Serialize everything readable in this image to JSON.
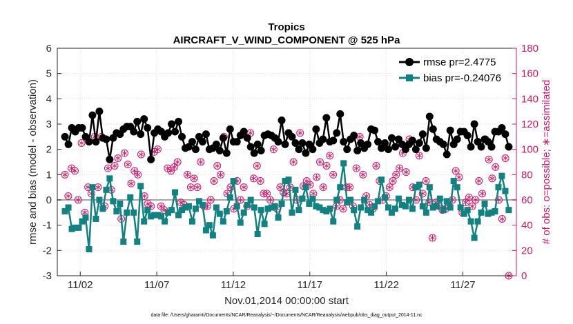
{
  "chart_data": {
    "type": "line",
    "title": "Tropics",
    "subtitle": "AIRCRAFT_V_WIND_COMPONENT @ 525 hPa",
    "xlabel": "Nov.01,2014 00:00:00 start",
    "ylabel": "rmse and bias (model - observation)",
    "ylabel_right": "# of obs: o=possible; ∗=assimilated",
    "footnote": "data file: /Users/gharamti/Documents/NCAR/Reanalysis/~/Documents/NCAR/Reanalysis/webpub/obs_diag_output_2014-11.nc",
    "x_range": [
      0.5,
      30.5
    ],
    "ylim": [
      -3,
      6
    ],
    "ylim_right": [
      0,
      180
    ],
    "x_ticks": [
      2,
      7,
      12,
      17,
      22,
      27
    ],
    "x_tick_labels": [
      "11/02",
      "11/07",
      "11/12",
      "11/17",
      "11/22",
      "11/27"
    ],
    "y_ticks": [
      "-3",
      "-2",
      "-1",
      "0",
      "1",
      "2",
      "3",
      "4",
      "5",
      "6"
    ],
    "y_ticks_right": [
      "0",
      "20",
      "40",
      "60",
      "80",
      "100",
      "120",
      "140",
      "160",
      "180"
    ],
    "colors": {
      "rmse": "#000000",
      "bias": "#118181",
      "obs": "#d01567",
      "zero_line": "#a6a6a6"
    },
    "legend_position": "top-right",
    "series": [
      {
        "name": "rmse",
        "label": "rmse pr=2.4775",
        "values": [
          2.5,
          2.2,
          2.85,
          2.7,
          2.85,
          2.85,
          2.5,
          2.3,
          3.35,
          2.3,
          3.5,
          2.45,
          2.4,
          1.6,
          2.45,
          2.65,
          2.6,
          2.8,
          2.9,
          2.9,
          2.7,
          3.1,
          2.6,
          3.2,
          2.85,
          1.6,
          2.65,
          2.8,
          2.7,
          2.5,
          2.65,
          3.0,
          2.7,
          3.1,
          2.5,
          2.05,
          2.1,
          2.3,
          2.0,
          2.5,
          2.3,
          2.6,
          2.0,
          2.05,
          2.2,
          1.95,
          2.45,
          1.85,
          2.8,
          2.3,
          2.3,
          2.55,
          2.7,
          2.45,
          2.1,
          1.85,
          2.2,
          1.95,
          2.55,
          2.6,
          2.55,
          2.45,
          2.3,
          3.15,
          2.2,
          2.65,
          2.5,
          2.25,
          2.0,
          2.25,
          1.85,
          2.2,
          2.0,
          2.8,
          2.25,
          2.4,
          3.25,
          2.3,
          2.35,
          2.65,
          3.4,
          2.3,
          2.0,
          2.4,
          2.55,
          1.95,
          2.25,
          2.05,
          2.2,
          2.8,
          2.75,
          2.3,
          2.05,
          2.25,
          2.0,
          2.45,
          2.1,
          2.4,
          2.2,
          2.0,
          2.2,
          2.35,
          2.0,
          2.25,
          2.6,
          2.05,
          3.3,
          2.8,
          2.4,
          2.3,
          2.2,
          1.8,
          2.75,
          2.2,
          2.4,
          2.7,
          2.7,
          2.55,
          2.1,
          3.0,
          2.3,
          2.1,
          2.4,
          2.3,
          2.1,
          2.7,
          2.7,
          2.85,
          2.6,
          2.1
        ]
      },
      {
        "name": "bias",
        "label": "bias pr=-0.24076",
        "values": [
          -0.45,
          -0.3,
          -1.15,
          -1.1,
          -1.1,
          -0.85,
          -0.7,
          -1.95,
          0.5,
          -0.75,
          0.0,
          -0.35,
          0.4,
          0.85,
          -0.05,
          -0.45,
          -0.15,
          -1.65,
          -0.5,
          0.1,
          -0.5,
          -1.65,
          0.55,
          -0.85,
          -0.4,
          -0.65,
          -0.6,
          -0.6,
          -0.65,
          -0.85,
          -0.5,
          -0.4,
          0.3,
          -0.6,
          -0.4,
          -0.3,
          -0.25,
          -0.85,
          -0.35,
          -0.05,
          -0.2,
          -1.2,
          -1.0,
          -1.4,
          -0.3,
          -0.55,
          -0.85,
          -0.45,
          0.1,
          0.75,
          -0.25,
          -0.9,
          -0.5,
          -0.2,
          0.0,
          -0.3,
          -1.35,
          -0.4,
          -0.95,
          -0.35,
          -0.3,
          -0.25,
          -0.7,
          -0.15,
          0.75,
          0.8,
          -0.5,
          0.4,
          -0.4,
          0.05,
          0.5,
          -0.15,
          0.05,
          -0.25,
          -0.3,
          -0.4,
          -0.45,
          -0.35,
          -0.85,
          0.0,
          0.5,
          1.45,
          -0.1,
          0.0,
          -0.4,
          -1.05,
          -0.3,
          0.0,
          -0.4,
          -0.5,
          -0.25,
          -0.05,
          0.8,
          0.1,
          -0.3,
          -0.5,
          -0.35,
          0.05,
          -0.2,
          -0.25,
          0.0,
          -0.35,
          0.5,
          0.6,
          -0.25,
          -0.5,
          0.5,
          -0.3,
          -0.25,
          0.05,
          -0.4,
          -0.05,
          -0.3,
          0.75,
          0.5,
          -0.3,
          -0.55,
          -0.4,
          -0.85,
          -1.5,
          -0.85,
          -0.5,
          -0.15,
          -0.55,
          -0.5,
          -0.45,
          0.5,
          0.95,
          0.35,
          -0.4
        ]
      }
    ],
    "obs_possible": [
      80,
      63,
      85,
      83,
      60,
      105,
      50,
      70,
      65,
      110,
      70,
      110,
      55,
      85,
      68,
      87,
      93,
      45,
      97,
      88,
      73,
      83,
      80,
      96,
      63,
      57,
      55,
      98,
      100,
      55,
      52,
      85,
      83,
      86,
      90,
      58,
      56,
      80,
      70,
      77,
      70,
      90,
      55,
      55,
      60,
      75,
      87,
      80,
      110,
      65,
      70,
      53,
      75,
      60,
      70,
      55,
      113,
      77,
      87,
      75,
      65,
      65,
      60,
      100,
      53,
      70,
      66,
      65,
      70,
      90,
      60,
      113,
      71,
      75,
      72,
      65,
      78,
      90,
      70,
      87,
      95,
      80,
      55,
      60,
      53,
      70,
      70,
      55,
      85,
      110,
      80,
      63,
      56,
      53,
      87,
      75,
      60,
      63,
      70,
      75,
      80,
      85,
      97,
      82,
      108,
      70,
      60,
      95,
      65,
      75,
      58,
      30,
      58,
      55,
      52,
      53,
      55,
      60,
      83,
      78,
      50,
      58,
      62,
      55,
      60,
      75,
      65,
      108,
      92,
      77,
      86,
      60,
      45,
      93,
      0
    ],
    "obs_assimilated": [
      80,
      63,
      85,
      83,
      60,
      105,
      50,
      70,
      65,
      110,
      70,
      110,
      55,
      85,
      68,
      87,
      93,
      45,
      97,
      88,
      73,
      83,
      80,
      96,
      63,
      57,
      55,
      98,
      100,
      55,
      52,
      85,
      83,
      86,
      90,
      58,
      56,
      80,
      70,
      77,
      70,
      90,
      55,
      55,
      60,
      75,
      87,
      80,
      110,
      65,
      70,
      53,
      75,
      60,
      70,
      55,
      113,
      77,
      87,
      75,
      65,
      65,
      60,
      100,
      53,
      70,
      66,
      65,
      70,
      90,
      60,
      113,
      71,
      75,
      72,
      65,
      78,
      90,
      70,
      87,
      95,
      80,
      55,
      60,
      53,
      70,
      70,
      55,
      85,
      110,
      80,
      63,
      56,
      53,
      87,
      75,
      60,
      63,
      70,
      75,
      80,
      85,
      97,
      82,
      108,
      70,
      60,
      95,
      65,
      75,
      58,
      30,
      58,
      55,
      52,
      53,
      55,
      60,
      83,
      78,
      50,
      58,
      62,
      55,
      60,
      75,
      65,
      108,
      92,
      77,
      86,
      60,
      45,
      93,
      0
    ]
  }
}
